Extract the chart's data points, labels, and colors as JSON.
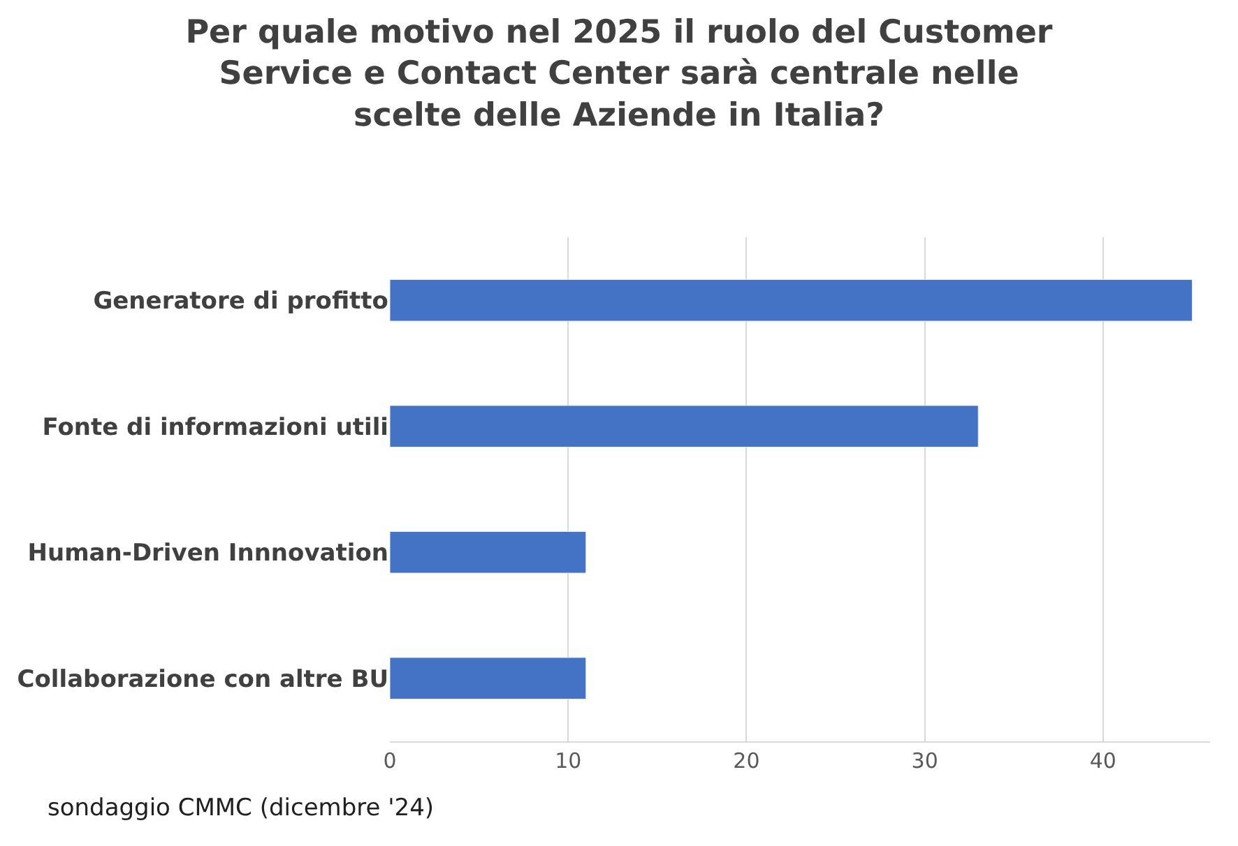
{
  "chart_data": {
    "type": "bar",
    "orientation": "horizontal",
    "title": "Per quale motivo nel 2025 il ruolo del Customer\nService e Contact Center sarà centrale nelle\nscelte delle Aziende in Italia?",
    "categories": [
      "Generatore di profitto",
      "Fonte di informazioni utili",
      "Human-Driven Innnovation",
      "Collaborazione con altre BU"
    ],
    "values": [
      45,
      33,
      11,
      11
    ],
    "color": "#4472c4",
    "xlim": [
      0,
      46
    ],
    "xticks": [
      0,
      10,
      20,
      30,
      40
    ],
    "grid": "x",
    "legend": false,
    "annotations": [
      "sondaggio CMMC (dicembre '24)"
    ]
  }
}
